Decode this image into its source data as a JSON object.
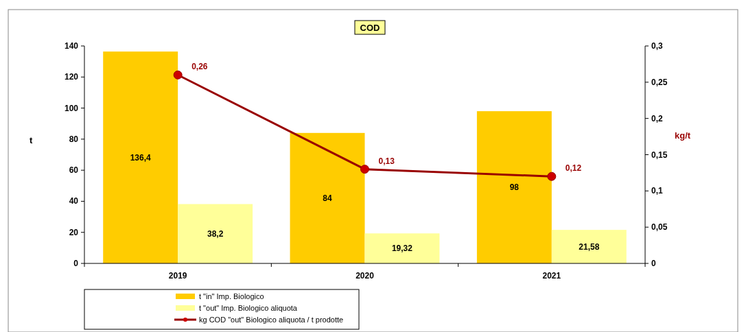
{
  "chart_data": {
    "type": "bar",
    "title": "COD",
    "ylabel": "t",
    "y2label": "kg/t",
    "categories": [
      "2019",
      "2020",
      "2021"
    ],
    "series": [
      {
        "name": "t \"in\" Imp. Biologico",
        "color": "#ffcc00",
        "values": [
          136.4,
          84,
          98
        ],
        "value_labels": [
          "136,4",
          "84",
          "98"
        ]
      },
      {
        "name": "t \"out\" Imp. Biologico aliquota",
        "color": "#ffff99",
        "values": [
          38.2,
          19.32,
          21.58
        ],
        "value_labels": [
          "38,2",
          "19,32",
          "21,58"
        ]
      },
      {
        "name": "kg COD \"out\" Biologico aliquota / t prodotte",
        "type": "line",
        "axis": "y2",
        "color": "#990000",
        "values": [
          0.26,
          0.13,
          0.12
        ],
        "value_labels": [
          "0,26",
          "0,13",
          "0,12"
        ]
      }
    ],
    "ylim": [
      0,
      140
    ],
    "yticks": [
      0,
      20,
      40,
      60,
      80,
      100,
      120,
      140
    ],
    "y2lim": [
      0,
      0.3
    ],
    "y2ticks": [
      {
        "value": 0,
        "label": "0"
      },
      {
        "value": 0.05,
        "label": "0,05"
      },
      {
        "value": 0.1,
        "label": "0,1"
      },
      {
        "value": 0.15,
        "label": "0,15"
      },
      {
        "value": 0.2,
        "label": "0,2"
      },
      {
        "value": 0.25,
        "label": "0,25"
      },
      {
        "value": 0.3,
        "label": "0,3"
      }
    ],
    "marker": "circle",
    "legend": "bottom left",
    "grid": false
  }
}
